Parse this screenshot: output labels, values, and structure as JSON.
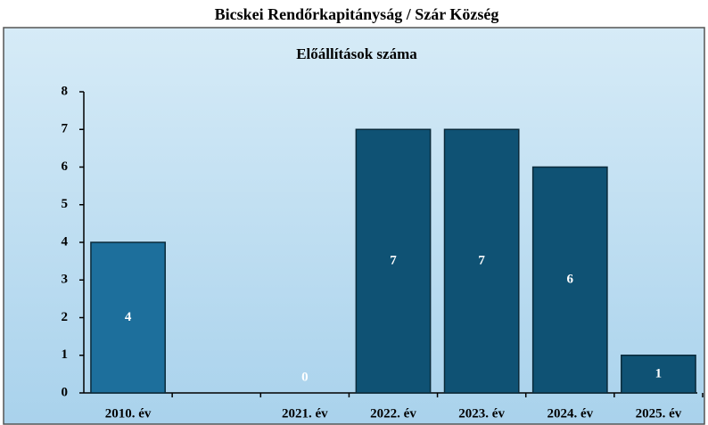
{
  "chart_data": {
    "type": "bar",
    "header": "Bicskei Rendőrkapitányság / Szár Község",
    "title": "Előállítások száma",
    "categories": [
      "2010. év",
      null,
      "2021. év",
      "2022. év",
      "2023. év",
      "2024. év",
      "2025. év"
    ],
    "values": [
      4,
      null,
      0,
      7,
      7,
      6,
      1
    ],
    "colors": [
      "#1d6f9c",
      "#1d6f9c",
      "#0f5274",
      "#0f5274",
      "#0f5274",
      "#0f5274",
      "#0f5274"
    ],
    "ylim": [
      0,
      8
    ],
    "yticks": [
      0,
      1,
      2,
      3,
      4,
      5,
      6,
      7,
      8
    ],
    "grid": false
  }
}
